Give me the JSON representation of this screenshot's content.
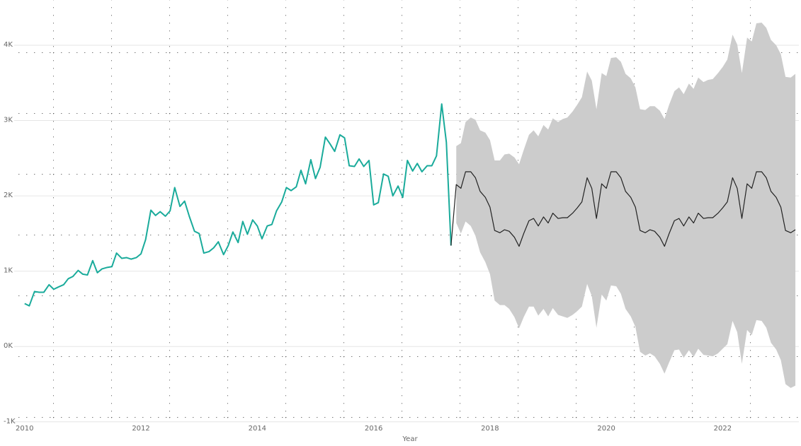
{
  "chart_data": {
    "type": "line",
    "x_label": "Year",
    "xlim": [
      2009.82,
      2023.31
    ],
    "xticks": [
      2010,
      2012,
      2014,
      2016,
      2018,
      2020,
      2022
    ],
    "ylim": [
      -1030,
      4600
    ],
    "yticks": [
      {
        "value": -1000,
        "label": "-1K"
      },
      {
        "value": 0,
        "label": "0K"
      },
      {
        "value": 1000,
        "label": "1K"
      },
      {
        "value": 2000,
        "label": "2K"
      },
      {
        "value": 3000,
        "label": "3K"
      },
      {
        "value": 4000,
        "label": "4K"
      }
    ],
    "grid": true,
    "series": [
      {
        "color": "#1aab9b",
        "x": [
          2010,
          2010.08,
          2010.17,
          2010.25,
          2010.33,
          2010.42,
          2010.5,
          2010.58,
          2010.67,
          2010.75,
          2010.83,
          2010.92,
          2011,
          2011.08,
          2011.17,
          2011.25,
          2011.33,
          2011.42,
          2011.5,
          2011.58,
          2011.67,
          2011.75,
          2011.83,
          2011.92,
          2012,
          2012.08,
          2012.17,
          2012.25,
          2012.33,
          2012.42,
          2012.5,
          2012.58,
          2012.67,
          2012.75,
          2012.83,
          2012.92,
          2013,
          2013.08,
          2013.17,
          2013.25,
          2013.33,
          2013.42,
          2013.5,
          2013.58,
          2013.67,
          2013.75,
          2013.83,
          2013.92,
          2014,
          2014.08,
          2014.17,
          2014.25,
          2014.33,
          2014.42,
          2014.5,
          2014.58,
          2014.67,
          2014.75,
          2014.83,
          2014.92,
          2015,
          2015.08,
          2015.17,
          2015.25,
          2015.33,
          2015.42,
          2015.5,
          2015.58,
          2015.67,
          2015.75,
          2015.83,
          2015.92,
          2016,
          2016.08,
          2016.17,
          2016.25,
          2016.33,
          2016.42,
          2016.5,
          2016.58,
          2016.67,
          2016.75,
          2016.83,
          2016.92,
          2017,
          2017.08,
          2017.17,
          2017.25,
          2017.33
        ],
        "values": [
          570,
          540,
          730,
          720,
          720,
          820,
          760,
          790,
          820,
          900,
          930,
          1010,
          960,
          950,
          1140,
          980,
          1030,
          1050,
          1060,
          1240,
          1170,
          1180,
          1160,
          1180,
          1230,
          1420,
          1810,
          1740,
          1790,
          1730,
          1800,
          2110,
          1860,
          1930,
          1730,
          1530,
          1500,
          1240,
          1260,
          1310,
          1390,
          1220,
          1340,
          1520,
          1380,
          1660,
          1490,
          1680,
          1600,
          1430,
          1600,
          1620,
          1800,
          1920,
          2110,
          2070,
          2120,
          2340,
          2160,
          2480,
          2230,
          2380,
          2780,
          2690,
          2590,
          2810,
          2770,
          2400,
          2390,
          2490,
          2390,
          2470,
          1880,
          1910,
          2290,
          2260,
          2000,
          2130,
          1980,
          2470,
          2330,
          2430,
          2320,
          2400,
          2400,
          2530,
          3220,
          2710,
          1340
        ]
      },
      {
        "color": "#222222",
        "band_color": "#cccccc",
        "x": [
          2017.33,
          2017.42,
          2017.5,
          2017.58,
          2017.67,
          2017.75,
          2017.83,
          2017.92,
          2018,
          2018.08,
          2018.17,
          2018.25,
          2018.33,
          2018.42,
          2018.5,
          2018.58,
          2018.67,
          2018.75,
          2018.83,
          2018.92,
          2019,
          2019.08,
          2019.17,
          2019.25,
          2019.33,
          2019.42,
          2019.5,
          2019.58,
          2019.67,
          2019.75,
          2019.83,
          2019.92,
          2020,
          2020.08,
          2020.17,
          2020.25,
          2020.33,
          2020.42,
          2020.5,
          2020.58,
          2020.67,
          2020.75,
          2020.83,
          2020.92,
          2021,
          2021.08,
          2021.17,
          2021.25,
          2021.33,
          2021.42,
          2021.5,
          2021.58,
          2021.67,
          2021.75,
          2021.83,
          2021.92,
          2022,
          2022.08,
          2022.17,
          2022.25,
          2022.33,
          2022.42,
          2022.5,
          2022.58,
          2022.67,
          2022.75,
          2022.83,
          2022.92,
          2023,
          2023.08,
          2023.17,
          2023.25
        ],
        "values": [
          1340,
          2150,
          2100,
          2320,
          2320,
          2240,
          2060,
          1980,
          1850,
          1540,
          1510,
          1550,
          1530,
          1450,
          1330,
          1500,
          1670,
          1700,
          1600,
          1720,
          1640,
          1770,
          1700,
          1710,
          1710,
          1770,
          1840,
          1920,
          2240,
          2100,
          1700,
          2160,
          2100,
          2320,
          2320,
          2240,
          2060,
          1980,
          1850,
          1540,
          1510,
          1550,
          1530,
          1450,
          1330,
          1500,
          1670,
          1700,
          1600,
          1720,
          1640,
          1770,
          1700,
          1710,
          1710,
          1770,
          1840,
          1920,
          2240,
          2100,
          1700,
          2160,
          2100,
          2320,
          2320,
          2240,
          2060,
          1980,
          1850,
          1540,
          1510,
          1550
        ],
        "errors": [
          null,
          510,
          600,
          660,
          720,
          770,
          810,
          860,
          890,
          930,
          960,
          1000,
          1030,
          1060,
          1090,
          1110,
          1140,
          1170,
          1190,
          1220,
          1240,
          1260,
          1280,
          1310,
          1330,
          1350,
          1370,
          1390,
          1410,
          1430,
          1450,
          1470,
          1490,
          1510,
          1520,
          1540,
          1560,
          1580,
          1590,
          1610,
          1630,
          1640,
          1660,
          1680,
          1690,
          1710,
          1720,
          1740,
          1750,
          1770,
          1780,
          1800,
          1810,
          1830,
          1840,
          1860,
          1870,
          1890,
          1900,
          1910,
          1930,
          1940,
          1950,
          1970,
          1980,
          1990,
          2010,
          2020,
          2030,
          2040,
          2060,
          2070
        ]
      }
    ]
  }
}
